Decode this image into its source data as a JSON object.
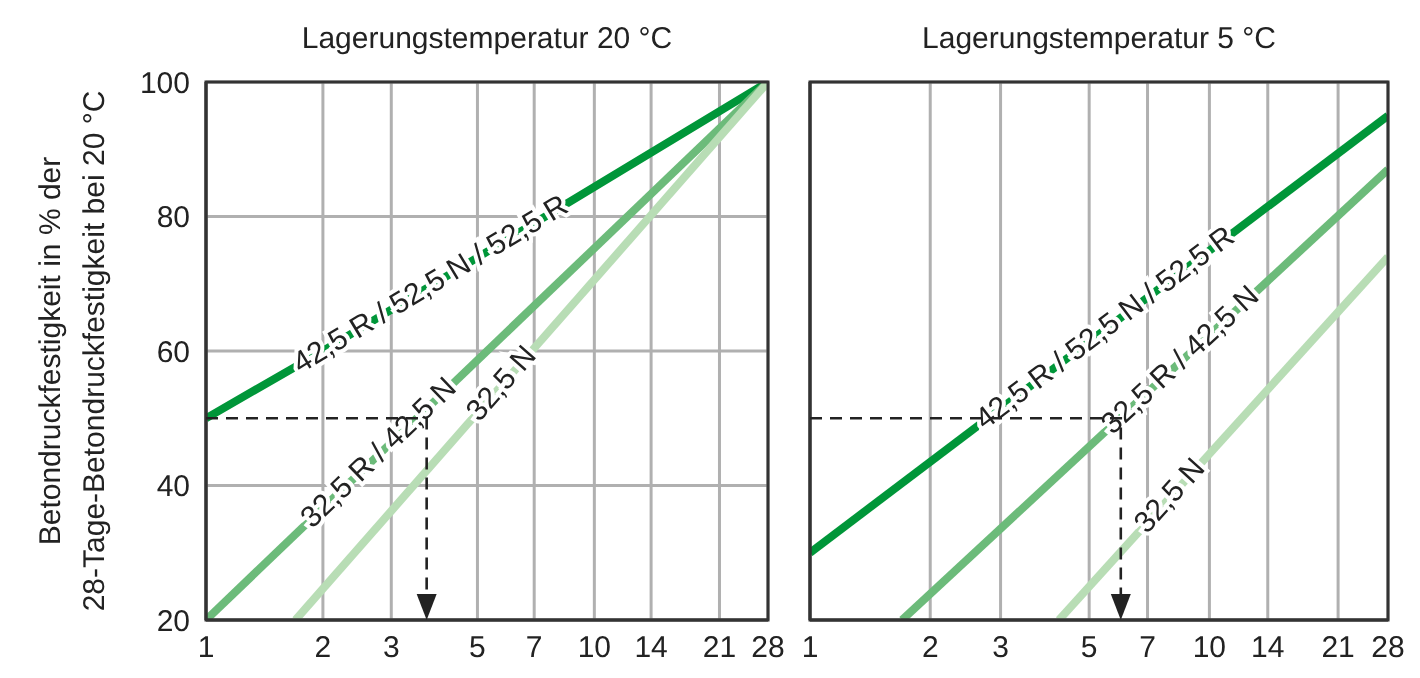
{
  "chart_data": [
    {
      "type": "line",
      "title": "Lagerungstemperatur 20 °C",
      "ylabel": "Betondruckfestigkeit in % der\n28-Tage-Betondruckfestigkeit bei 20 °C",
      "log": "x",
      "xlim": [
        1,
        28
      ],
      "xticks": [
        1,
        2,
        3,
        5,
        7,
        10,
        14,
        21,
        28
      ],
      "ylim": [
        20,
        100
      ],
      "yticks": [
        20,
        40,
        60,
        80,
        100
      ],
      "grid": true,
      "marker": "none",
      "line_style": "solid",
      "series": [
        {
          "name": "42,5 R / 52,5 N / 52,5 R",
          "color": "#009639",
          "x": [
            1,
            2,
            7,
            28
          ],
          "values": [
            50,
            60,
            79,
            100
          ]
        },
        {
          "name": "32,5 R / 42,5 N",
          "color": "#6cbb7a",
          "x": [
            1,
            28
          ],
          "values": [
            20,
            100
          ]
        },
        {
          "name": "32,5 N",
          "color": "#b8ddb5",
          "x": [
            1.7,
            28
          ],
          "values": [
            20,
            100
          ]
        }
      ]
    },
    {
      "type": "line",
      "title": "Lagerungstemperatur 5 °C",
      "log": "x",
      "xlim": [
        1,
        28
      ],
      "xticks": [
        1,
        2,
        3,
        5,
        7,
        10,
        14,
        21,
        28
      ],
      "ylim": [
        20,
        100
      ],
      "yticks": [
        20,
        40,
        60,
        80,
        100
      ],
      "tick_labels": "x",
      "grid": true,
      "marker": "none",
      "line_style": "solid",
      "series": [
        {
          "name": "42,5 R / 52,5 N / 52,5 R",
          "color": "#009639",
          "x": [
            1,
            28
          ],
          "values": [
            30,
            95
          ]
        },
        {
          "name": "32,5 R / 42,5 N",
          "color": "#6cbb7a",
          "x": [
            1.7,
            28
          ],
          "values": [
            20,
            87
          ]
        },
        {
          "name": "32,5 N",
          "color": "#b8ddb5",
          "x": [
            4.2,
            28
          ],
          "values": [
            20,
            74
          ]
        }
      ]
    }
  ]
}
